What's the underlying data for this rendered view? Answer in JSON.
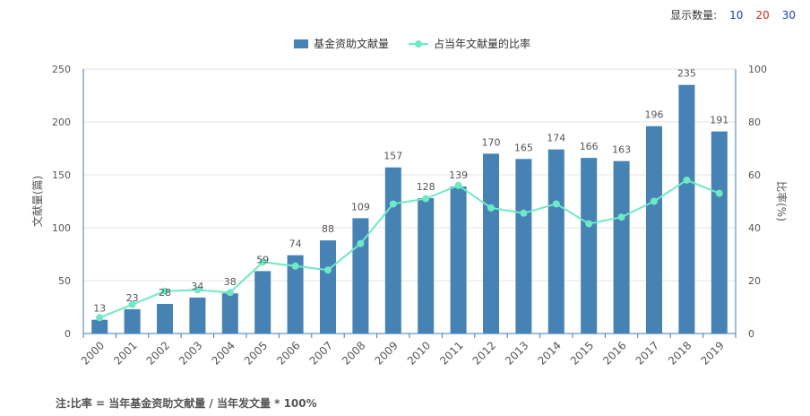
{
  "topbar": {
    "label": "显示数量:",
    "options": [
      "10",
      "20",
      "30"
    ]
  },
  "footnote": "注:比率 = 当年基金资助文献量 / 当年发文量 * 100%",
  "colors": {
    "bar": "#4682b4",
    "line": "#6ee9c6",
    "axis": "#3d7cb4"
  },
  "chart_data": {
    "type": "bar",
    "categories": [
      "2000",
      "2001",
      "2002",
      "2003",
      "2004",
      "2005",
      "2006",
      "2007",
      "2008",
      "2009",
      "2010",
      "2011",
      "2012",
      "2013",
      "2014",
      "2015",
      "2016",
      "2017",
      "2018",
      "2019"
    ],
    "series": [
      {
        "name": "基金资助文献量",
        "type": "bar",
        "axis": "left",
        "values": [
          13,
          23,
          28,
          34,
          38,
          59,
          74,
          88,
          109,
          157,
          128,
          139,
          170,
          165,
          174,
          166,
          163,
          196,
          235,
          191
        ]
      },
      {
        "name": "占当年文献量的比率",
        "type": "line",
        "axis": "right",
        "values": [
          6,
          11,
          16,
          16.5,
          15.5,
          27,
          25.5,
          24,
          34,
          49,
          51,
          56,
          47.5,
          45.5,
          49,
          41.5,
          44,
          50,
          58,
          53
        ]
      }
    ],
    "ylabel": "文献量(篇)",
    "ylabel_right": "比率(%)",
    "ylim": [
      0,
      250
    ],
    "ylim_right": [
      0,
      100
    ],
    "yticks": [
      0,
      50,
      100,
      150,
      200,
      250
    ],
    "yticks_right": [
      0,
      20,
      40,
      60,
      80,
      100
    ],
    "legend": "top-center",
    "grid": true
  }
}
